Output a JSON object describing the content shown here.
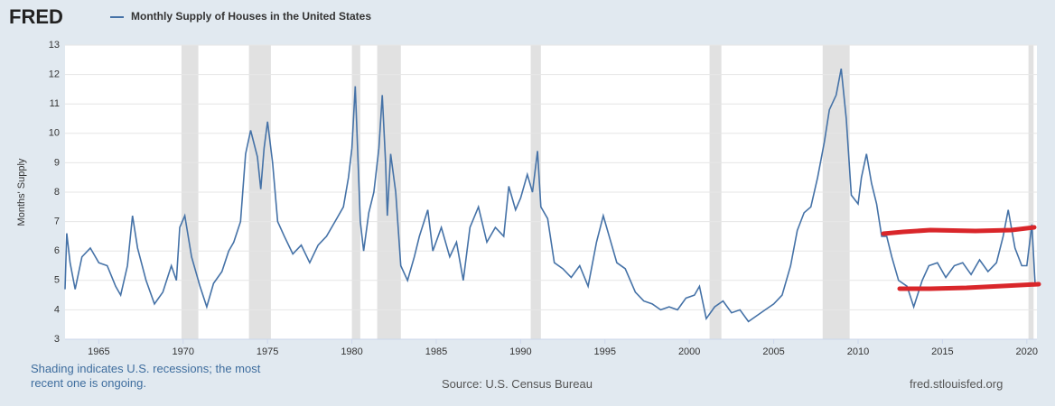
{
  "chart_data": {
    "type": "line",
    "logo": "FRED",
    "ylabel": "Months' Supply",
    "note": "Shading indicates U.S. recessions; the most recent one is ongoing.",
    "source": "Source: U.S. Census Bureau",
    "site": "fred.stlouisfed.org",
    "xlim": [
      1963,
      2020.6
    ],
    "xticks": [
      1965,
      1970,
      1975,
      1980,
      1985,
      1990,
      1995,
      2000,
      2005,
      2010,
      2015,
      2020
    ],
    "ylim": [
      3,
      13
    ],
    "yticks": [
      3,
      4,
      5,
      6,
      7,
      8,
      9,
      10,
      11,
      12,
      13
    ],
    "grid": true,
    "recessions": [
      [
        1969.9,
        1970.9
      ],
      [
        1973.9,
        1975.2
      ],
      [
        1980.0,
        1980.5
      ],
      [
        1981.5,
        1982.9
      ],
      [
        1990.6,
        1991.2
      ],
      [
        2001.2,
        2001.9
      ],
      [
        2007.9,
        2009.5
      ],
      [
        2020.1,
        2020.4
      ]
    ],
    "x": [
      1963.0,
      1963.1,
      1963.3,
      1963.6,
      1964.0,
      1964.5,
      1965.0,
      1965.5,
      1966.0,
      1966.3,
      1966.7,
      1967.0,
      1967.3,
      1967.8,
      1968.3,
      1968.8,
      1969.3,
      1969.6,
      1969.8,
      1970.1,
      1970.5,
      1971.0,
      1971.4,
      1971.8,
      1972.3,
      1972.7,
      1973.0,
      1973.4,
      1973.7,
      1974.0,
      1974.4,
      1974.6,
      1974.8,
      1975.0,
      1975.3,
      1975.6,
      1976.0,
      1976.5,
      1977.0,
      1977.5,
      1978.0,
      1978.5,
      1979.0,
      1979.5,
      1979.8,
      1980.0,
      1980.2,
      1980.5,
      1980.7,
      1981.0,
      1981.3,
      1981.6,
      1981.8,
      1982.0,
      1982.1,
      1982.3,
      1982.6,
      1982.9,
      1983.3,
      1983.7,
      1984.0,
      1984.5,
      1984.8,
      1985.3,
      1985.8,
      1986.2,
      1986.6,
      1987.0,
      1987.5,
      1988.0,
      1988.5,
      1989.0,
      1989.3,
      1989.7,
      1990.0,
      1990.4,
      1990.7,
      1991.0,
      1991.2,
      1991.6,
      1992.0,
      1992.5,
      1993.0,
      1993.5,
      1994.0,
      1994.5,
      1994.9,
      1995.3,
      1995.7,
      1996.2,
      1996.8,
      1997.3,
      1997.8,
      1998.3,
      1998.8,
      1999.3,
      1999.8,
      2000.3,
      2000.6,
      2001.0,
      2001.5,
      2002.0,
      2002.5,
      2003.0,
      2003.5,
      2004.0,
      2004.5,
      2005.0,
      2005.5,
      2006.0,
      2006.4,
      2006.8,
      2007.2,
      2007.6,
      2008.0,
      2008.3,
      2008.7,
      2009.0,
      2009.3,
      2009.6,
      2010.0,
      2010.2,
      2010.5,
      2010.8,
      2011.1,
      2011.4,
      2011.7,
      2012.0,
      2012.4,
      2012.9,
      2013.3,
      2013.8,
      2014.2,
      2014.7,
      2015.2,
      2015.7,
      2016.2,
      2016.7,
      2017.2,
      2017.7,
      2018.2,
      2018.6,
      2018.9,
      2019.3,
      2019.7,
      2020.0,
      2020.3,
      2020.5
    ],
    "series": [
      {
        "name": "Monthly Supply of Houses in the United States",
        "color": "#4572a7",
        "values": [
          4.7,
          6.6,
          5.6,
          4.7,
          5.8,
          6.1,
          5.6,
          5.5,
          4.8,
          4.5,
          5.5,
          7.2,
          6.1,
          5.0,
          4.2,
          4.6,
          5.5,
          5.0,
          6.8,
          7.2,
          5.8,
          4.8,
          4.1,
          4.9,
          5.3,
          6.0,
          6.3,
          7.0,
          9.3,
          10.1,
          9.2,
          8.1,
          9.5,
          10.4,
          9.0,
          7.0,
          6.5,
          5.9,
          6.2,
          5.6,
          6.2,
          6.5,
          7.0,
          7.5,
          8.5,
          9.5,
          11.6,
          7.0,
          6.0,
          7.3,
          8.0,
          9.5,
          11.3,
          9.0,
          7.2,
          9.3,
          8.0,
          5.5,
          5.0,
          5.8,
          6.5,
          7.4,
          6.0,
          6.8,
          5.8,
          6.3,
          5.0,
          6.8,
          7.5,
          6.3,
          6.8,
          6.5,
          8.2,
          7.4,
          7.8,
          8.6,
          8.0,
          9.4,
          7.5,
          7.1,
          5.6,
          5.4,
          5.1,
          5.5,
          4.8,
          6.3,
          7.2,
          6.4,
          5.6,
          5.4,
          4.6,
          4.3,
          4.2,
          4.0,
          4.1,
          4.0,
          4.4,
          4.5,
          4.8,
          3.7,
          4.1,
          4.3,
          3.9,
          4.0,
          3.6,
          3.8,
          4.0,
          4.2,
          4.5,
          5.5,
          6.7,
          7.3,
          7.5,
          8.5,
          9.7,
          10.8,
          11.3,
          12.2,
          10.5,
          7.9,
          7.6,
          8.5,
          9.3,
          8.3,
          7.6,
          6.5,
          6.5,
          5.8,
          5.0,
          4.8,
          4.1,
          5.0,
          5.5,
          5.6,
          5.1,
          5.5,
          5.6,
          5.2,
          5.7,
          5.3,
          5.6,
          6.5,
          7.4,
          6.1,
          5.5,
          5.5,
          6.9,
          4.8
        ]
      }
    ]
  }
}
